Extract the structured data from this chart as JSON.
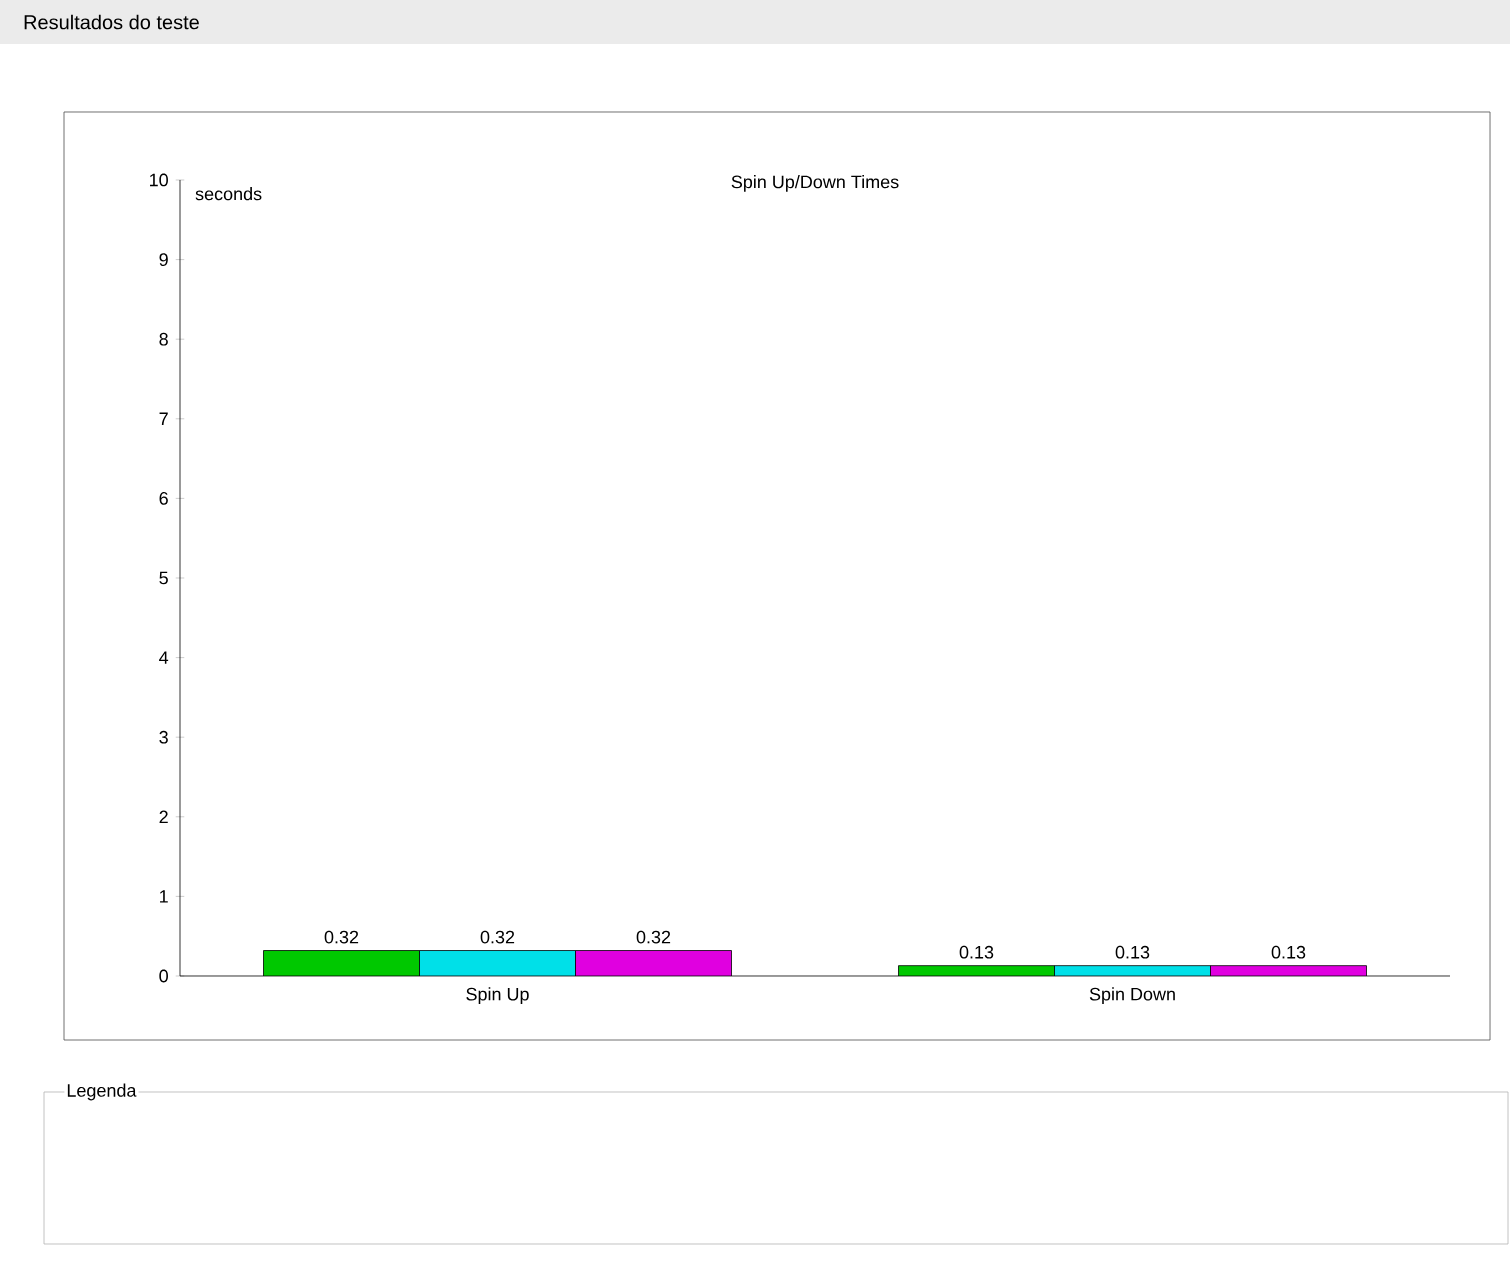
{
  "chart_data": {
    "type": "bar",
    "title": "Spin Up/Down Times",
    "ylabel": "seconds",
    "annotations": [
      "Resultados do teste",
      "Legenda"
    ],
    "categories": [
      "Spin Up",
      "Spin Down"
    ],
    "series": [
      {
        "color": "#00c800",
        "values": [
          0.32,
          0.13
        ]
      },
      {
        "color": "#00e0e8",
        "values": [
          0.32,
          0.13
        ]
      },
      {
        "color": "#e000e0",
        "values": [
          0.32,
          0.13
        ]
      }
    ],
    "ylim": [
      0,
      10
    ],
    "yticks": [
      0,
      1,
      2,
      3,
      4,
      5,
      6,
      7,
      8,
      9,
      10
    ],
    "data_labels": true,
    "grid": false
  }
}
